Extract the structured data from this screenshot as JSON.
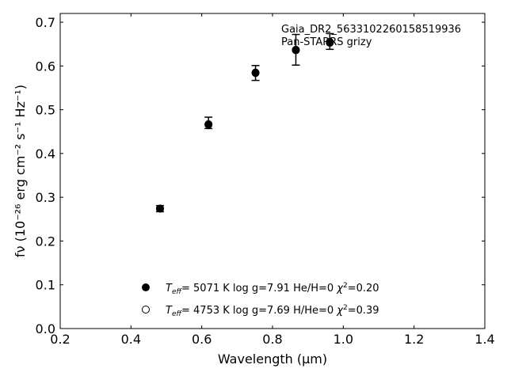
{
  "chart_data": {
    "type": "scatter",
    "annotation_lines": [
      "Gaia_DR2_5633102260158519936",
      "Pan-STARRS grizy"
    ],
    "xlabel": "Wavelength (μm)",
    "ylabel": "fν (10⁻²⁶ erg cm⁻² s⁻¹ Hz⁻¹)",
    "xlim": [
      0.2,
      1.4
    ],
    "ylim": [
      0.0,
      0.72
    ],
    "xticks": [
      0.2,
      0.4,
      0.6,
      0.8,
      1.0,
      1.2,
      1.4
    ],
    "xtick_labels": [
      "0.2",
      "0.4",
      "0.6",
      "0.8",
      "1.0",
      "1.2",
      "1.4"
    ],
    "yticks": [
      0.0,
      0.1,
      0.2,
      0.3,
      0.4,
      0.5,
      0.6,
      0.7
    ],
    "ytick_labels": [
      "0.0",
      "0.1",
      "0.2",
      "0.3",
      "0.4",
      "0.5",
      "0.6",
      "0.7"
    ],
    "grid": false,
    "observed": {
      "x": [
        0.482,
        0.619,
        0.752,
        0.866,
        0.962
      ],
      "y": [
        0.274,
        0.47,
        0.584,
        0.637,
        0.656
      ],
      "yerr": [
        0.007,
        0.013,
        0.017,
        0.035,
        0.018
      ]
    },
    "series": [
      {
        "marker": "filled-circle",
        "label": "T_eff = 5071 K  log g=7.91  He/H=0  χ²=0.20",
        "label_parts": {
          "teff": "5071 K",
          "logg": "log g=7.91",
          "comp": "He/H=0",
          "chi2": "0.20"
        },
        "x": [
          0.482,
          0.619,
          0.752,
          0.866,
          0.962
        ],
        "y": [
          0.274,
          0.466,
          0.584,
          0.636,
          0.653
        ]
      },
      {
        "marker": "open-circle",
        "label": "T_eff = 4753 K  log g=7.69  H/He=0  χ²=0.39",
        "label_parts": {
          "teff": "4753 K",
          "logg": "log g=7.69",
          "comp": "H/He=0",
          "chi2": "0.39"
        },
        "x": [
          0.482,
          0.619,
          0.752,
          0.866,
          0.962
        ],
        "y": [
          0.274,
          0.467,
          0.585,
          0.637,
          0.655
        ]
      }
    ],
    "legend_position": "lower-center"
  }
}
